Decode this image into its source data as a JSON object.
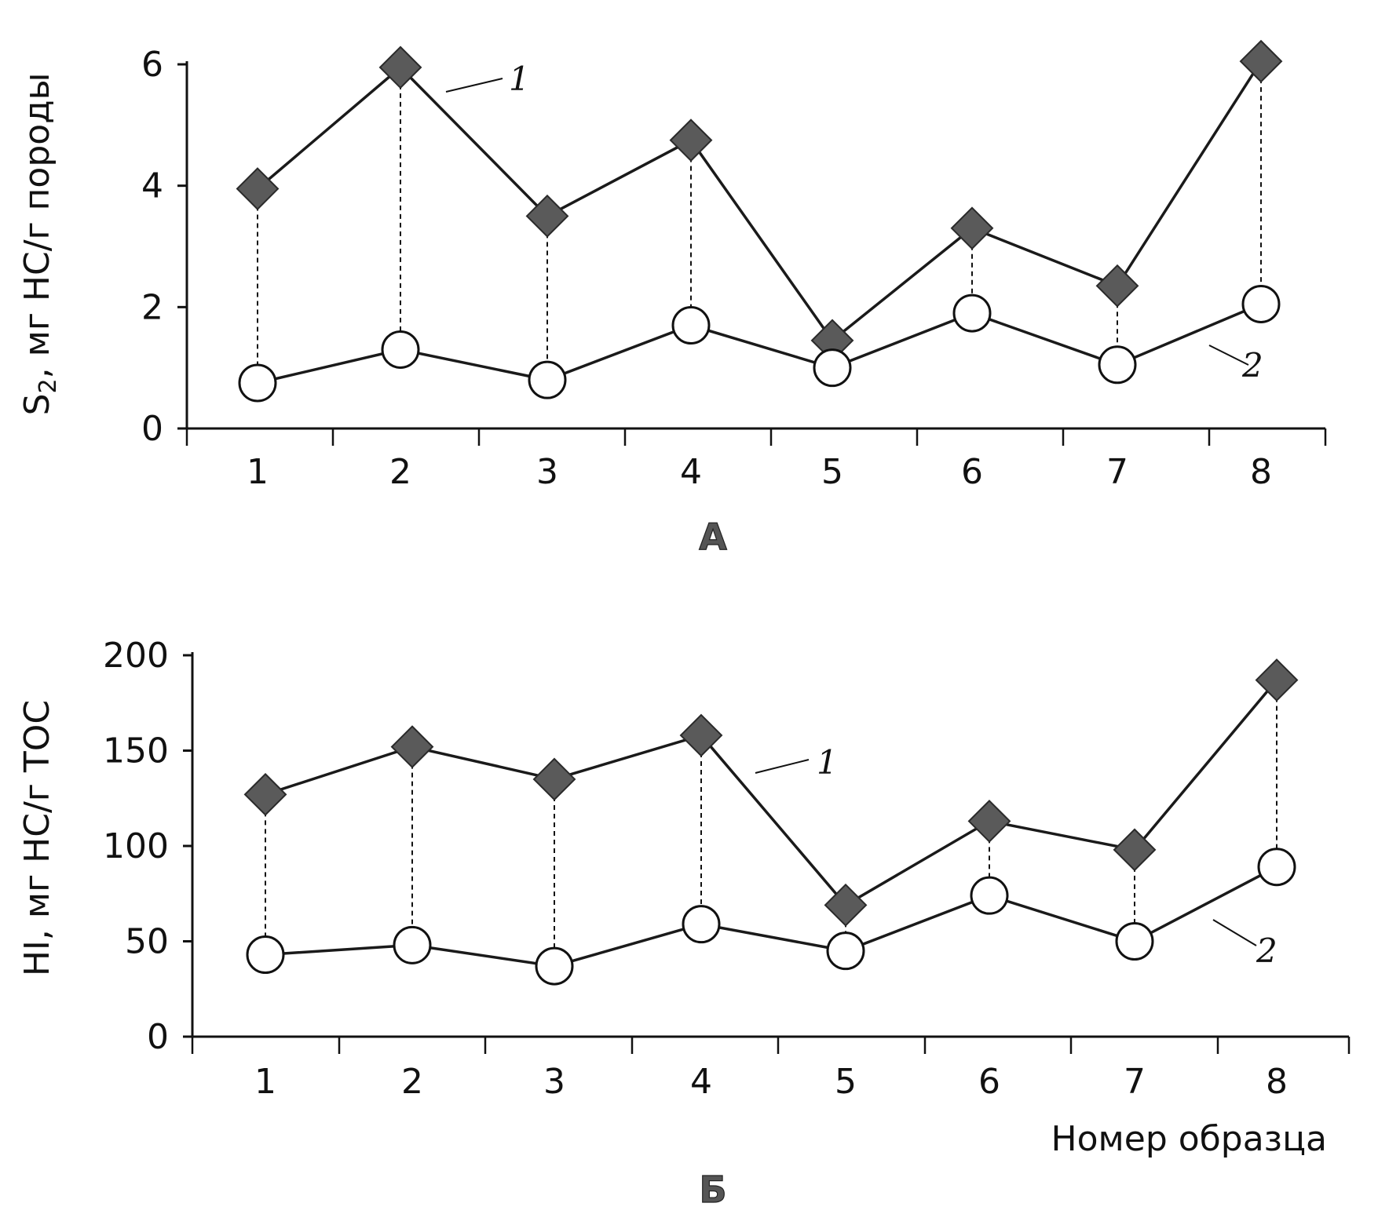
{
  "chart_data": [
    {
      "type": "line",
      "panel_label": "А",
      "ylabel_main": "S",
      "ylabel_sub": "2",
      "ylabel_rest": ", мг HC/г породы",
      "xlabel": "",
      "ylim": [
        0,
        6
      ],
      "yticks": [
        0,
        2,
        4,
        6
      ],
      "categories": [
        "1",
        "2",
        "3",
        "4",
        "5",
        "6",
        "7",
        "8"
      ],
      "series": [
        {
          "tag": "1",
          "marker": "filled-diamond",
          "color": "#5a5a5a",
          "values": [
            3.95,
            5.95,
            3.5,
            4.75,
            1.45,
            3.3,
            2.35,
            6.05
          ]
        },
        {
          "tag": "2",
          "marker": "open-circle",
          "color": "#ffffff",
          "values": [
            0.75,
            1.3,
            0.8,
            1.7,
            1.0,
            1.9,
            1.05,
            2.05
          ]
        }
      ],
      "droplines": true,
      "grid": false
    },
    {
      "type": "line",
      "panel_label": "Б",
      "ylabel": "HI, мг HC/г TOC",
      "xlabel": "Номер образца",
      "ylim": [
        0,
        200
      ],
      "yticks": [
        0,
        50,
        100,
        150,
        200
      ],
      "categories": [
        "1",
        "2",
        "3",
        "4",
        "5",
        "6",
        "7",
        "8"
      ],
      "series": [
        {
          "tag": "1",
          "marker": "filled-diamond",
          "color": "#5a5a5a",
          "values": [
            127,
            152,
            135,
            158,
            69,
            113,
            98,
            187
          ]
        },
        {
          "tag": "2",
          "marker": "open-circle",
          "color": "#ffffff",
          "values": [
            43,
            48,
            37,
            59,
            45,
            74,
            50,
            89
          ]
        }
      ],
      "droplines": true,
      "grid": false
    }
  ]
}
